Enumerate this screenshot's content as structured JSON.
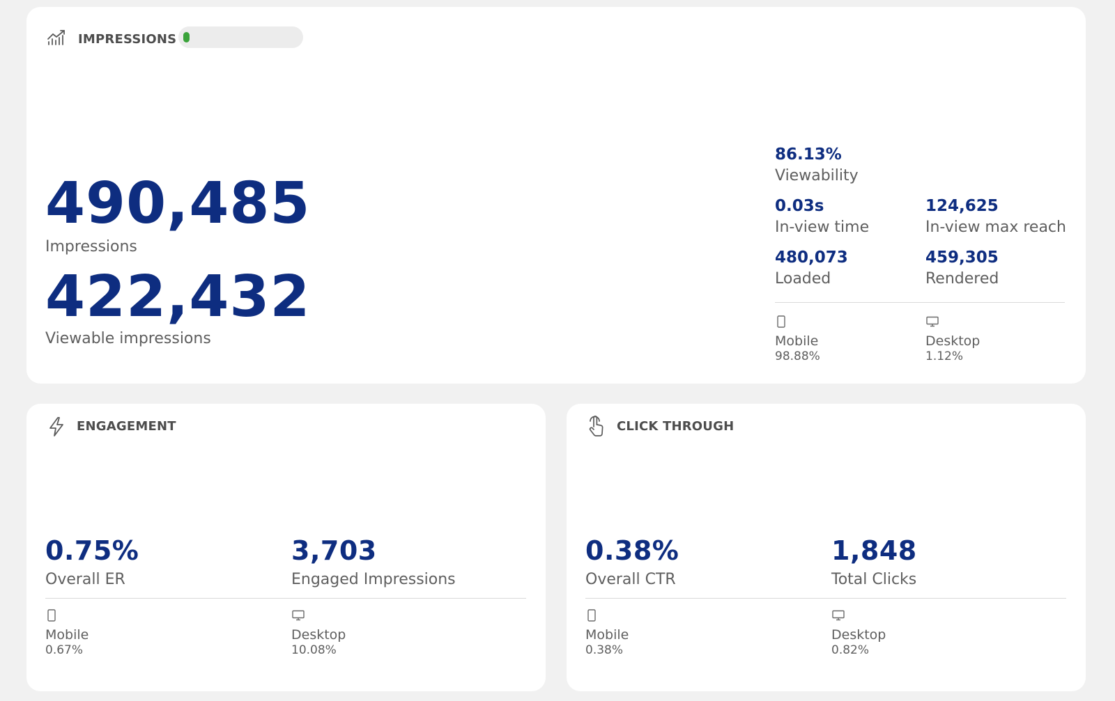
{
  "impressions": {
    "title": "IMPRESSIONS",
    "progress_fraction": 0.0,
    "colors": {
      "progress": "#3aa33a",
      "value": "#0e2d80"
    },
    "icon": "line-chart-icon",
    "impressions_value": "490,485",
    "impressions_label": "Impressions",
    "viewable_value": "422,432",
    "viewable_label": "Viewable impressions",
    "viewability_value": "86.13%",
    "viewability_label": "Viewability",
    "inview_time_value": "0.03s",
    "inview_time_label": "In-view time",
    "inview_reach_value": "124,625",
    "inview_reach_label": "In-view max reach",
    "loaded_value": "480,073",
    "loaded_label": "Loaded",
    "rendered_value": "459,305",
    "rendered_label": "Rendered",
    "mobile_label": "Mobile",
    "mobile_value": "98.88%",
    "desktop_label": "Desktop",
    "desktop_value": "1.12%"
  },
  "engagement": {
    "title": "ENGAGEMENT",
    "icon": "lightning-icon",
    "er_value": "0.75%",
    "er_label": "Overall ER",
    "engaged_value": "3,703",
    "engaged_label": "Engaged Impressions",
    "mobile_label": "Mobile",
    "mobile_value": "0.67%",
    "desktop_label": "Desktop",
    "desktop_value": "10.08%"
  },
  "click_through": {
    "title": "CLICK THROUGH",
    "icon": "pointer-hand-icon",
    "ctr_value": "0.38%",
    "ctr_label": "Overall CTR",
    "clicks_value": "1,848",
    "clicks_label": "Total Clicks",
    "mobile_label": "Mobile",
    "mobile_value": "0.38%",
    "desktop_label": "Desktop",
    "desktop_value": "0.82%"
  }
}
